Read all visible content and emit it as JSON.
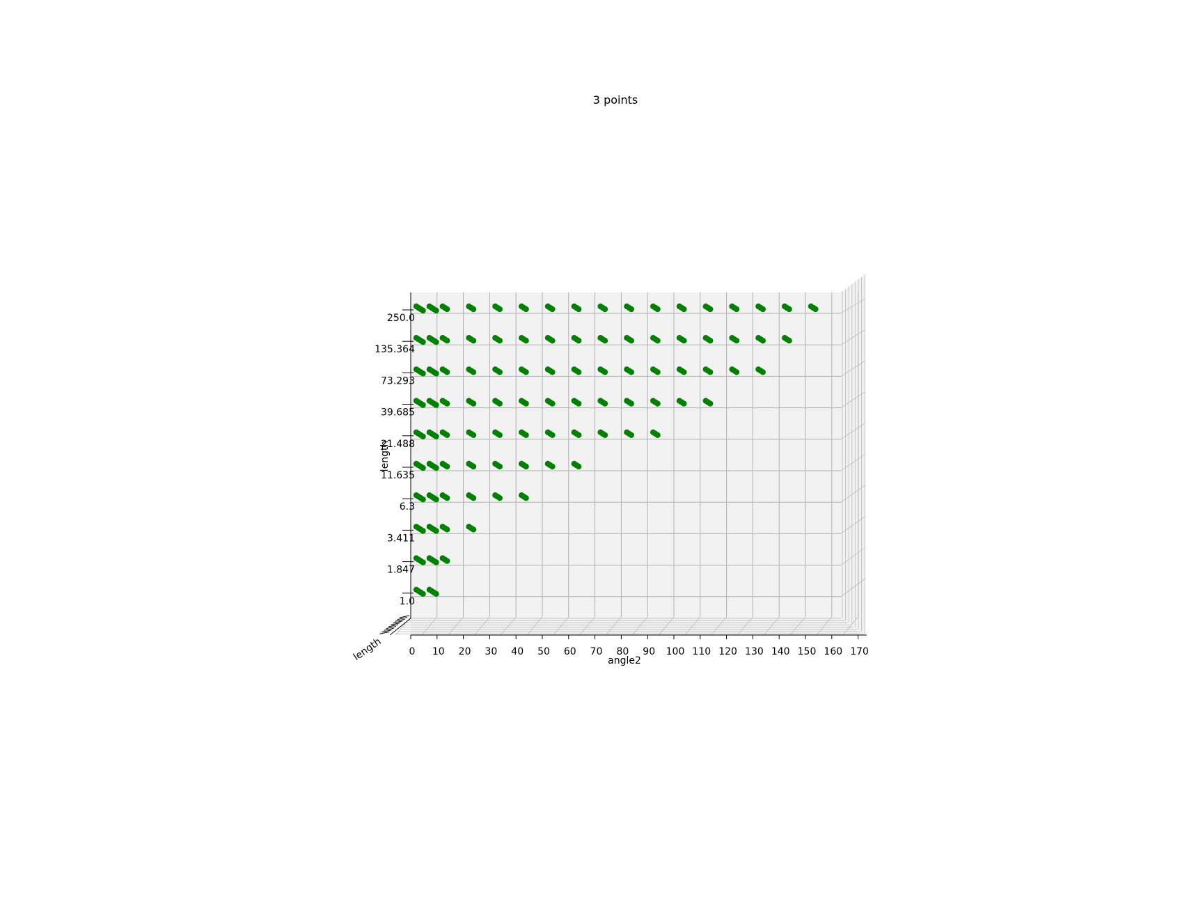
{
  "chart_data": {
    "type": "scatter",
    "title": "3 points",
    "xlabel": "angle2",
    "ylabel": "length",
    "zlabel": "length",
    "x_ticks": [
      "0",
      "10",
      "20",
      "30",
      "40",
      "50",
      "60",
      "70",
      "80",
      "90",
      "100",
      "110",
      "120",
      "130",
      "140",
      "150",
      "160",
      "170"
    ],
    "y_ticks": [
      "1.0",
      "1.847",
      "3.411",
      "6.3",
      "11.635",
      "21.488",
      "39.685",
      "73.293",
      "135.364",
      "250.0"
    ],
    "y_scale": "log",
    "grid": true,
    "marker_color": "#008000",
    "series": [
      {
        "columns": [
          "angle2",
          "length"
        ],
        "points": [
          [
            0,
            1.0
          ],
          [
            5,
            1.0
          ],
          [
            0,
            1.847
          ],
          [
            5,
            1.847
          ],
          [
            10,
            1.847
          ],
          [
            0,
            3.411
          ],
          [
            5,
            3.411
          ],
          [
            10,
            3.411
          ],
          [
            20,
            3.411
          ],
          [
            0,
            6.3
          ],
          [
            5,
            6.3
          ],
          [
            10,
            6.3
          ],
          [
            20,
            6.3
          ],
          [
            30,
            6.3
          ],
          [
            40,
            6.3
          ],
          [
            0,
            11.635
          ],
          [
            5,
            11.635
          ],
          [
            10,
            11.635
          ],
          [
            20,
            11.635
          ],
          [
            30,
            11.635
          ],
          [
            40,
            11.635
          ],
          [
            50,
            11.635
          ],
          [
            60,
            11.635
          ],
          [
            0,
            21.488
          ],
          [
            5,
            21.488
          ],
          [
            10,
            21.488
          ],
          [
            20,
            21.488
          ],
          [
            30,
            21.488
          ],
          [
            40,
            21.488
          ],
          [
            50,
            21.488
          ],
          [
            60,
            21.488
          ],
          [
            70,
            21.488
          ],
          [
            80,
            21.488
          ],
          [
            90,
            21.488
          ],
          [
            0,
            39.685
          ],
          [
            5,
            39.685
          ],
          [
            10,
            39.685
          ],
          [
            20,
            39.685
          ],
          [
            30,
            39.685
          ],
          [
            40,
            39.685
          ],
          [
            50,
            39.685
          ],
          [
            60,
            39.685
          ],
          [
            70,
            39.685
          ],
          [
            80,
            39.685
          ],
          [
            90,
            39.685
          ],
          [
            100,
            39.685
          ],
          [
            110,
            39.685
          ],
          [
            0,
            73.293
          ],
          [
            5,
            73.293
          ],
          [
            10,
            73.293
          ],
          [
            20,
            73.293
          ],
          [
            30,
            73.293
          ],
          [
            40,
            73.293
          ],
          [
            50,
            73.293
          ],
          [
            60,
            73.293
          ],
          [
            70,
            73.293
          ],
          [
            80,
            73.293
          ],
          [
            90,
            73.293
          ],
          [
            100,
            73.293
          ],
          [
            110,
            73.293
          ],
          [
            120,
            73.293
          ],
          [
            130,
            73.293
          ],
          [
            0,
            135.364
          ],
          [
            5,
            135.364
          ],
          [
            10,
            135.364
          ],
          [
            20,
            135.364
          ],
          [
            30,
            135.364
          ],
          [
            40,
            135.364
          ],
          [
            50,
            135.364
          ],
          [
            60,
            135.364
          ],
          [
            70,
            135.364
          ],
          [
            80,
            135.364
          ],
          [
            90,
            135.364
          ],
          [
            100,
            135.364
          ],
          [
            110,
            135.364
          ],
          [
            120,
            135.364
          ],
          [
            130,
            135.364
          ],
          [
            140,
            135.364
          ],
          [
            0,
            250.0
          ],
          [
            5,
            250.0
          ],
          [
            10,
            250.0
          ],
          [
            20,
            250.0
          ],
          [
            30,
            250.0
          ],
          [
            40,
            250.0
          ],
          [
            50,
            250.0
          ],
          [
            60,
            250.0
          ],
          [
            70,
            250.0
          ],
          [
            80,
            250.0
          ],
          [
            90,
            250.0
          ],
          [
            100,
            250.0
          ],
          [
            110,
            250.0
          ],
          [
            120,
            250.0
          ],
          [
            130,
            250.0
          ],
          [
            140,
            250.0
          ],
          [
            150,
            250.0
          ]
        ]
      }
    ]
  }
}
